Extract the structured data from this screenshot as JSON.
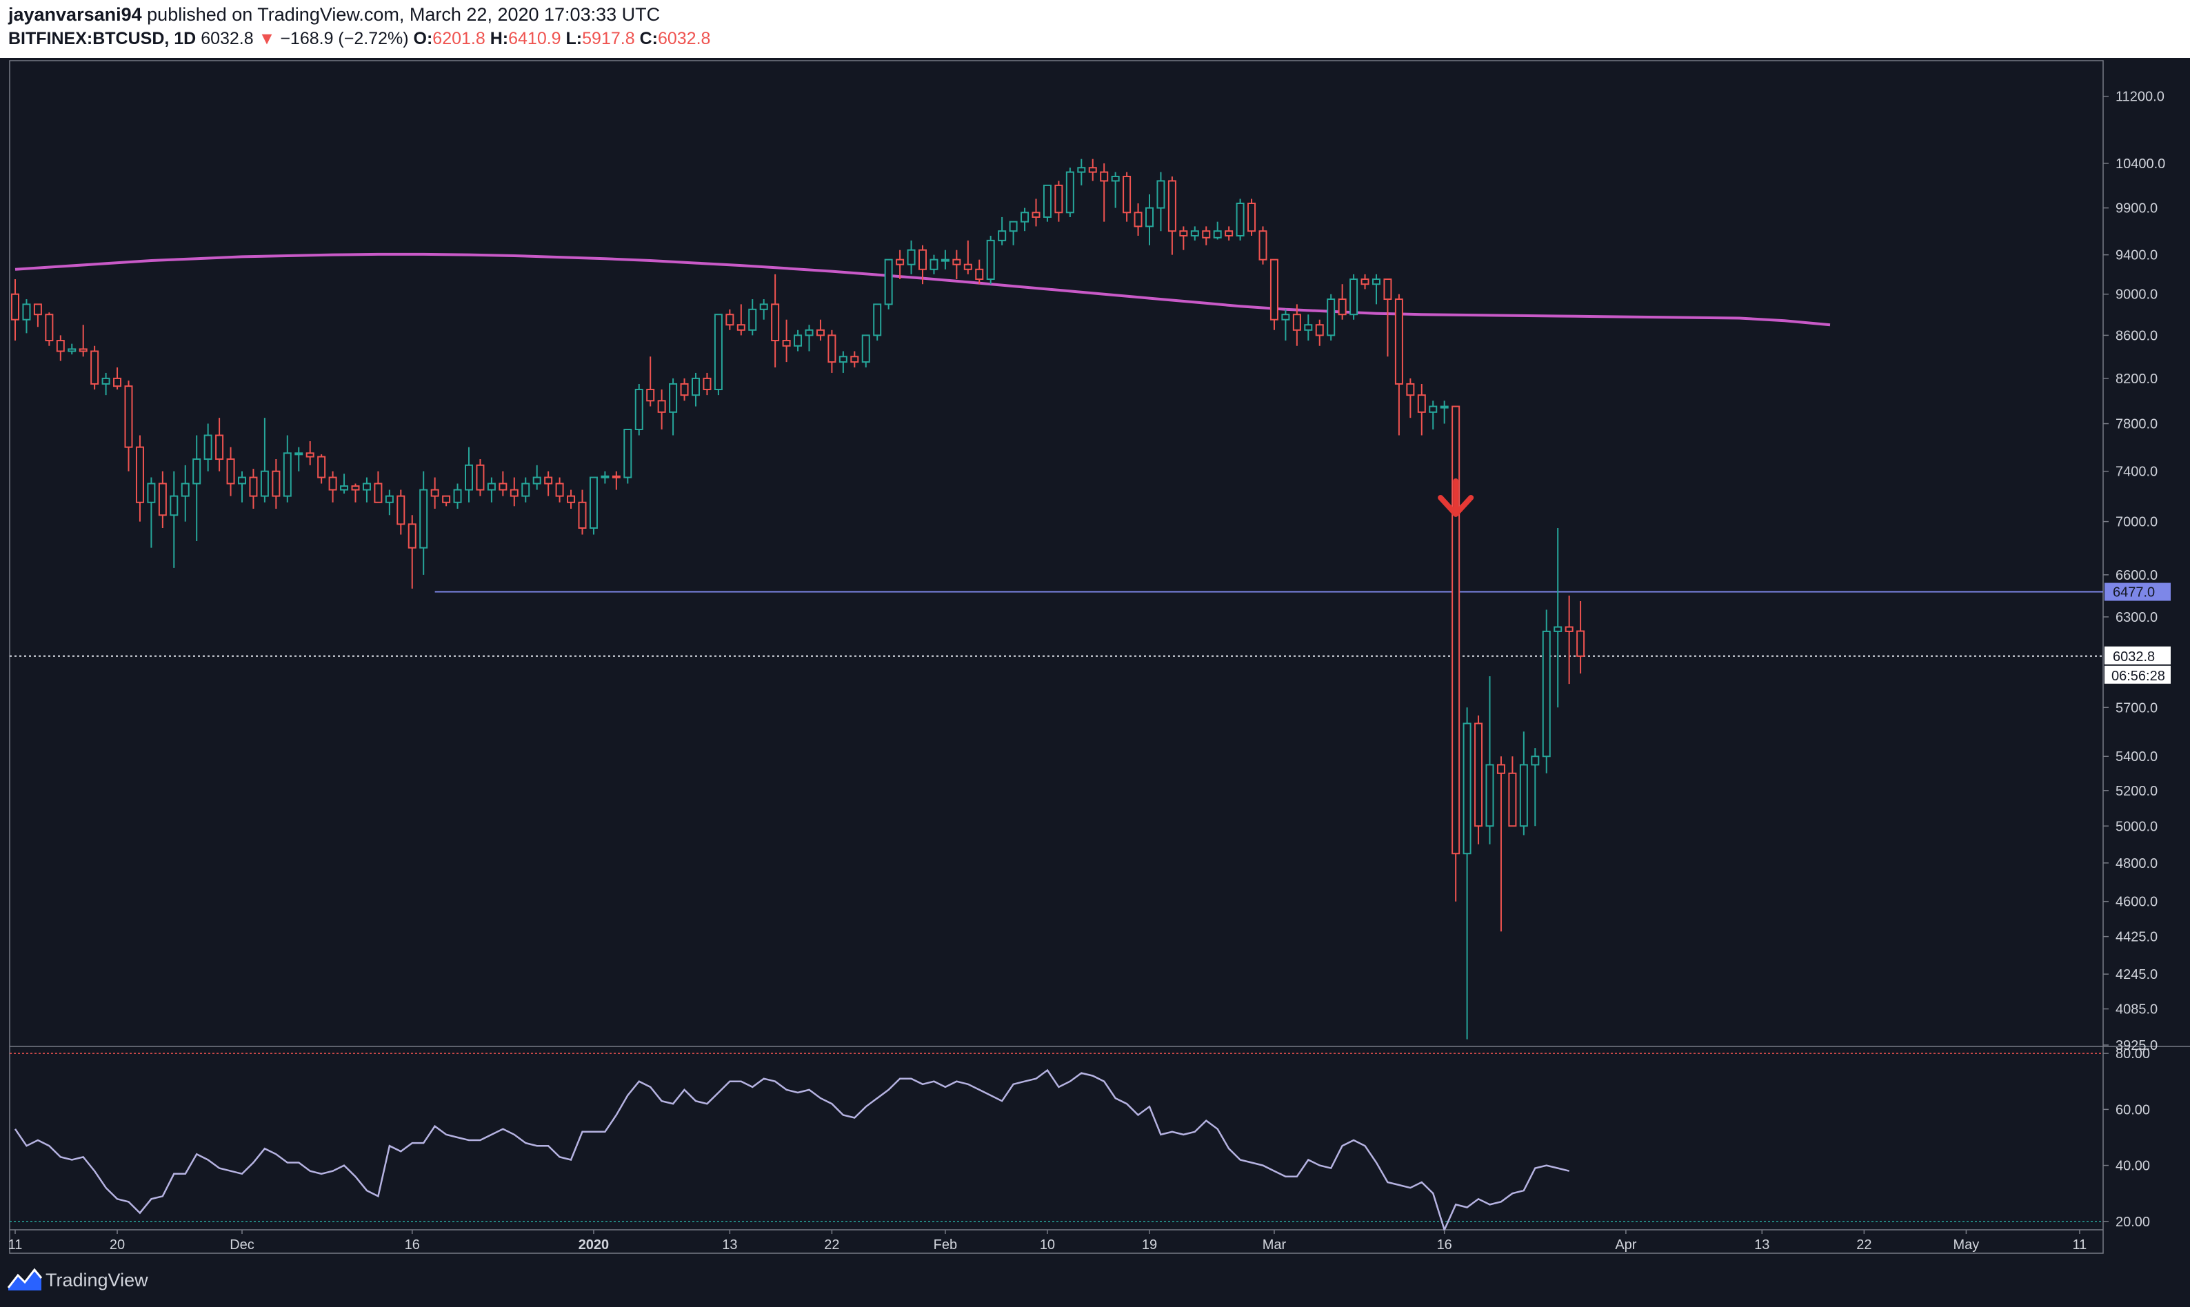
{
  "header": {
    "author": "jayanvarsani94",
    "published": "published on TradingView.com, March 22, 2020 17:03:33 UTC",
    "symbol": "BITFINEX:BTCUSD, 1D",
    "last": "6032.8",
    "change": "−168.9 (−2.72%)",
    "o_label": "O:",
    "o": "6201.8",
    "h_label": "H:",
    "h": "6410.9",
    "l_label": "L:",
    "l": "5917.8",
    "c_label": "C:",
    "c": "6032.8"
  },
  "footer": {
    "brand": "TradingView"
  },
  "colors": {
    "up": "#26a69a",
    "down": "#ef5350",
    "ma": "#c95ac8",
    "rsi": "#b6b3e2",
    "level": "#7d87e8",
    "bg": "#131722"
  },
  "chart_data": [
    {
      "type": "candlestick",
      "title": "",
      "interval": "1D",
      "y_scale": "log",
      "ylim": [
        3925,
        11300
      ],
      "y_ticks": [
        "11200.0",
        "10400.0",
        "9900.0",
        "9400.0",
        "9000.0",
        "8600.0",
        "8200.0",
        "7800.0",
        "7400.0",
        "7000.0",
        "6600.0",
        "6300.0",
        "5700.0",
        "5400.0",
        "5200.0",
        "5000.0",
        "4800.0",
        "4600.0",
        "4425.0",
        "4245.0",
        "4085.0",
        "3925.0"
      ],
      "x_ticks": [
        {
          "label": "11",
          "day": 0
        },
        {
          "label": "20",
          "day": 9
        },
        {
          "label": "Dec",
          "day": 20
        },
        {
          "label": "16",
          "day": 35
        },
        {
          "label": "2020",
          "day": 51
        },
        {
          "label": "13",
          "day": 63
        },
        {
          "label": "22",
          "day": 72
        },
        {
          "label": "Feb",
          "day": 82
        },
        {
          "label": "10",
          "day": 91
        },
        {
          "label": "19",
          "day": 100
        },
        {
          "label": "Mar",
          "day": 111
        },
        {
          "label": "16",
          "day": 126
        },
        {
          "label": "Apr",
          "day": 142
        },
        {
          "label": "13",
          "day": 154
        },
        {
          "label": "22",
          "day": 163
        },
        {
          "label": "May",
          "day": 172
        },
        {
          "label": "11",
          "day": 182
        }
      ],
      "price_labels": {
        "level": "6477.0",
        "current": "6032.8",
        "countdown": "06:56:28"
      },
      "horizontal_level": {
        "value": 6477,
        "from_day": 37
      },
      "annotation": {
        "type": "arrow-down",
        "day": 127,
        "value": 7100
      },
      "ma_values": [
        9250,
        9280,
        9310,
        9340,
        9360,
        9380,
        9390,
        9400,
        9405,
        9405,
        9400,
        9390,
        9375,
        9360,
        9340,
        9315,
        9290,
        9260,
        9230,
        9195,
        9160,
        9120,
        9080,
        9040,
        9000,
        8960,
        8920,
        8880,
        8850,
        8830,
        8810,
        8800,
        8795,
        8790,
        8785,
        8780,
        8775,
        8770,
        8765,
        8740,
        8700
      ],
      "ma_step_days": 4,
      "candles": [
        [
          9000,
          9150,
          8550,
          8750
        ],
        [
          8750,
          8950,
          8620,
          8900
        ],
        [
          8900,
          8900,
          8680,
          8800
        ],
        [
          8800,
          8820,
          8500,
          8550
        ],
        [
          8550,
          8600,
          8360,
          8450
        ],
        [
          8450,
          8520,
          8420,
          8470
        ],
        [
          8470,
          8700,
          8400,
          8450
        ],
        [
          8450,
          8500,
          8100,
          8150
        ],
        [
          8150,
          8250,
          8050,
          8200
        ],
        [
          8200,
          8300,
          8100,
          8130
        ],
        [
          8130,
          8180,
          7400,
          7600
        ],
        [
          7600,
          7700,
          7000,
          7150
        ],
        [
          7150,
          7350,
          6800,
          7300
        ],
        [
          7300,
          7400,
          6950,
          7050
        ],
        [
          7050,
          7400,
          6650,
          7200
        ],
        [
          7200,
          7450,
          7000,
          7300
        ],
        [
          7300,
          7700,
          6850,
          7500
        ],
        [
          7500,
          7800,
          7400,
          7700
        ],
        [
          7700,
          7850,
          7400,
          7500
        ],
        [
          7500,
          7600,
          7200,
          7300
        ],
        [
          7300,
          7400,
          7150,
          7350
        ],
        [
          7350,
          7420,
          7100,
          7200
        ],
        [
          7200,
          7850,
          7150,
          7400
        ],
        [
          7400,
          7500,
          7100,
          7200
        ],
        [
          7200,
          7700,
          7150,
          7550
        ],
        [
          7550,
          7600,
          7400,
          7550
        ],
        [
          7550,
          7650,
          7450,
          7520
        ],
        [
          7520,
          7540,
          7300,
          7350
        ],
        [
          7350,
          7400,
          7150,
          7250
        ],
        [
          7250,
          7380,
          7220,
          7280
        ],
        [
          7280,
          7300,
          7150,
          7250
        ],
        [
          7250,
          7350,
          7150,
          7300
        ],
        [
          7300,
          7400,
          7150,
          7150
        ],
        [
          7150,
          7250,
          7050,
          7200
        ],
        [
          7200,
          7250,
          6900,
          6980
        ],
        [
          6980,
          7050,
          6500,
          6800
        ],
        [
          6800,
          7400,
          6600,
          7250
        ],
        [
          7250,
          7350,
          7100,
          7200
        ],
        [
          7200,
          7200,
          7120,
          7150
        ],
        [
          7150,
          7300,
          7100,
          7250
        ],
        [
          7250,
          7600,
          7150,
          7450
        ],
        [
          7450,
          7500,
          7200,
          7250
        ],
        [
          7250,
          7350,
          7150,
          7300
        ],
        [
          7300,
          7400,
          7200,
          7250
        ],
        [
          7250,
          7350,
          7120,
          7200
        ],
        [
          7200,
          7350,
          7150,
          7300
        ],
        [
          7300,
          7450,
          7250,
          7350
        ],
        [
          7350,
          7400,
          7200,
          7300
        ],
        [
          7300,
          7350,
          7150,
          7200
        ],
        [
          7200,
          7250,
          7100,
          7150
        ],
        [
          7150,
          7250,
          6900,
          6950
        ],
        [
          6950,
          7350,
          6900,
          7350
        ],
        [
          7350,
          7400,
          7300,
          7360
        ],
        [
          7360,
          7400,
          7250,
          7350
        ],
        [
          7350,
          7750,
          7300,
          7750
        ],
        [
          7750,
          8150,
          7700,
          8100
        ],
        [
          8100,
          8400,
          7950,
          8000
        ],
        [
          8000,
          8100,
          7750,
          7900
        ],
        [
          7900,
          8200,
          7700,
          8150
        ],
        [
          8150,
          8200,
          8000,
          8050
        ],
        [
          8050,
          8250,
          7950,
          8200
        ],
        [
          8200,
          8250,
          8050,
          8100
        ],
        [
          8100,
          8800,
          8050,
          8800
        ],
        [
          8800,
          8850,
          8650,
          8700
        ],
        [
          8700,
          8900,
          8600,
          8650
        ],
        [
          8650,
          8950,
          8600,
          8850
        ],
        [
          8850,
          8950,
          8750,
          8900
        ],
        [
          8900,
          9200,
          8300,
          8550
        ],
        [
          8550,
          8750,
          8350,
          8500
        ],
        [
          8500,
          8650,
          8450,
          8600
        ],
        [
          8600,
          8700,
          8450,
          8650
        ],
        [
          8650,
          8750,
          8550,
          8600
        ],
        [
          8600,
          8650,
          8250,
          8350
        ],
        [
          8350,
          8450,
          8250,
          8400
        ],
        [
          8400,
          8450,
          8300,
          8350
        ],
        [
          8350,
          8600,
          8300,
          8600
        ],
        [
          8600,
          8900,
          8550,
          8900
        ],
        [
          8900,
          9350,
          8850,
          9350
        ],
        [
          9350,
          9450,
          9150,
          9300
        ],
        [
          9300,
          9550,
          9200,
          9450
        ],
        [
          9450,
          9500,
          9100,
          9250
        ],
        [
          9250,
          9400,
          9200,
          9350
        ],
        [
          9350,
          9450,
          9250,
          9350
        ],
        [
          9350,
          9450,
          9150,
          9300
        ],
        [
          9300,
          9550,
          9200,
          9250
        ],
        [
          9250,
          9350,
          9100,
          9150
        ],
        [
          9150,
          9600,
          9100,
          9550
        ],
        [
          9550,
          9800,
          9500,
          9650
        ],
        [
          9650,
          9750,
          9500,
          9750
        ],
        [
          9750,
          9900,
          9650,
          9850
        ],
        [
          9850,
          10000,
          9700,
          9800
        ],
        [
          9800,
          10150,
          9750,
          10150
        ],
        [
          10150,
          10200,
          9750,
          9850
        ],
        [
          9850,
          10350,
          9800,
          10300
        ],
        [
          10300,
          10450,
          10150,
          10350
        ],
        [
          10350,
          10450,
          10200,
          10300
        ],
        [
          10300,
          10400,
          9750,
          10200
        ],
        [
          10200,
          10300,
          9900,
          10250
        ],
        [
          10250,
          10300,
          9750,
          9850
        ],
        [
          9850,
          9950,
          9600,
          9700
        ],
        [
          9700,
          10050,
          9500,
          9900
        ],
        [
          9900,
          10300,
          9650,
          10200
        ],
        [
          10200,
          10250,
          9400,
          9650
        ],
        [
          9650,
          9700,
          9450,
          9600
        ],
        [
          9600,
          9700,
          9550,
          9650
        ],
        [
          9650,
          9700,
          9500,
          9580
        ],
        [
          9580,
          9750,
          9560,
          9650
        ],
        [
          9650,
          9700,
          9550,
          9600
        ],
        [
          9600,
          10000,
          9550,
          9950
        ],
        [
          9950,
          10000,
          9600,
          9650
        ],
        [
          9650,
          9700,
          9300,
          9350
        ],
        [
          9350,
          9350,
          8650,
          8750
        ],
        [
          8750,
          8850,
          8550,
          8800
        ],
        [
          8800,
          8900,
          8500,
          8650
        ],
        [
          8650,
          8800,
          8550,
          8700
        ],
        [
          8700,
          8750,
          8500,
          8600
        ],
        [
          8600,
          9000,
          8550,
          8950
        ],
        [
          8950,
          9100,
          8750,
          8800
        ],
        [
          8800,
          9200,
          8750,
          9150
        ],
        [
          9150,
          9200,
          9050,
          9100
        ],
        [
          9100,
          9200,
          8900,
          9150
        ],
        [
          9150,
          9150,
          8400,
          8950
        ],
        [
          8950,
          9000,
          7700,
          8150
        ],
        [
          8150,
          8200,
          7850,
          8050
        ],
        [
          8050,
          8150,
          7700,
          7900
        ],
        [
          7900,
          8000,
          7750,
          7950
        ],
        [
          7950,
          8000,
          7800,
          7950
        ],
        [
          7950,
          7950,
          4600,
          4850
        ],
        [
          4850,
          5700,
          3950,
          5600
        ],
        [
          5600,
          5650,
          4900,
          5000
        ],
        [
          5000,
          5900,
          4900,
          5350
        ],
        [
          5350,
          5400,
          4450,
          5300
        ],
        [
          5300,
          5400,
          5000,
          5000
        ],
        [
          5000,
          5550,
          4950,
          5350
        ],
        [
          5350,
          5450,
          5000,
          5400
        ],
        [
          5400,
          6350,
          5300,
          6200
        ],
        [
          6200,
          6950,
          5700,
          6230
        ],
        [
          6230,
          6450,
          5850,
          6200
        ],
        [
          6201.8,
          6410.9,
          5917.8,
          6032.8
        ]
      ]
    },
    {
      "type": "line",
      "title": "",
      "ylim": [
        17,
        82
      ],
      "y_ticks": [
        "80.00",
        "60.00",
        "40.00",
        "20.00"
      ],
      "overbought": 80,
      "oversold": 20,
      "series": [
        {
          "values": [
            53,
            47,
            49,
            47,
            43,
            42,
            43,
            38,
            32,
            28,
            27,
            23,
            28,
            29,
            37,
            37,
            44,
            42,
            39,
            38,
            37,
            41,
            46,
            44,
            41,
            41,
            38,
            37,
            38,
            40,
            36,
            31,
            29,
            47,
            45,
            48,
            48,
            54,
            51,
            50,
            49,
            49,
            51,
            53,
            51,
            48,
            47,
            47,
            43,
            42,
            52,
            52,
            52,
            58,
            65,
            70,
            68,
            63,
            62,
            67,
            63,
            62,
            66,
            70,
            70,
            68,
            71,
            70,
            67,
            66,
            67,
            64,
            62,
            58,
            57,
            61,
            64,
            67,
            71,
            71,
            69,
            70,
            68,
            70,
            69,
            67,
            65,
            63,
            69,
            70,
            71,
            74,
            68,
            70,
            73,
            72,
            70,
            64,
            62,
            58,
            61,
            51,
            52,
            51,
            52,
            56,
            53,
            46,
            42,
            41,
            40,
            38,
            36,
            36,
            42,
            40,
            39,
            47,
            49,
            47,
            41,
            34,
            33,
            32,
            34,
            30,
            17,
            26,
            25,
            28,
            26,
            27,
            30,
            31,
            39,
            40,
            39,
            38
          ]
        }
      ]
    }
  ]
}
